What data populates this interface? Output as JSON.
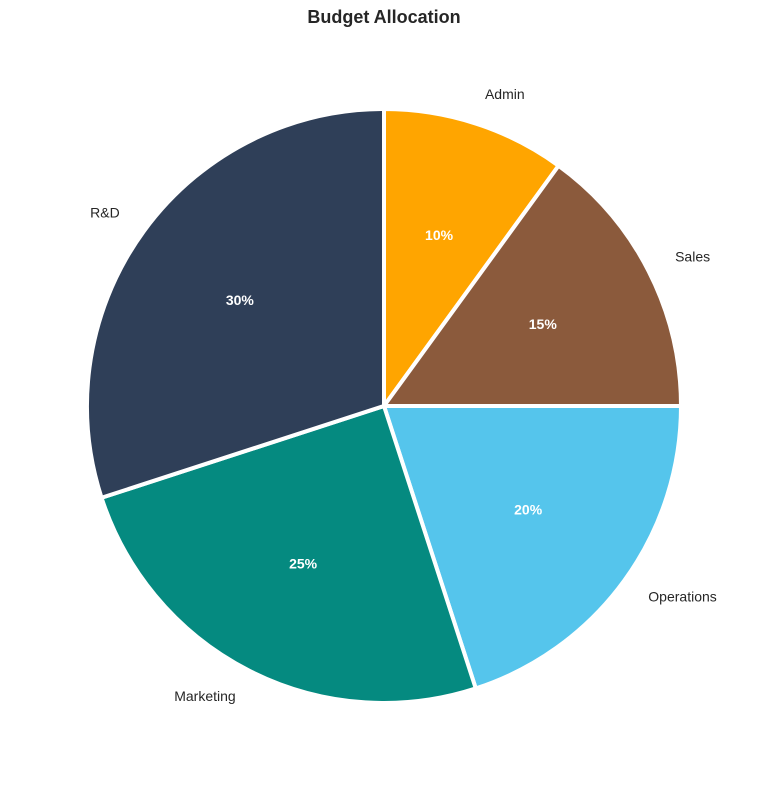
{
  "chart_data": {
    "type": "pie",
    "title": "Budget Allocation",
    "slices": [
      {
        "label": "Admin",
        "value": 10,
        "percent_label": "10%",
        "color": "#FFA500"
      },
      {
        "label": "Sales",
        "value": 15,
        "percent_label": "15%",
        "color": "#8B5A3C"
      },
      {
        "label": "Operations",
        "value": 20,
        "percent_label": "20%",
        "color": "#55C5EC"
      },
      {
        "label": "Marketing",
        "value": 25,
        "percent_label": "25%",
        "color": "#058A80"
      },
      {
        "label": "R&D",
        "value": 30,
        "percent_label": "30%",
        "color": "#2F3F58"
      }
    ],
    "start_angle_deg": 90,
    "direction": "clockwise",
    "legend": "none"
  }
}
